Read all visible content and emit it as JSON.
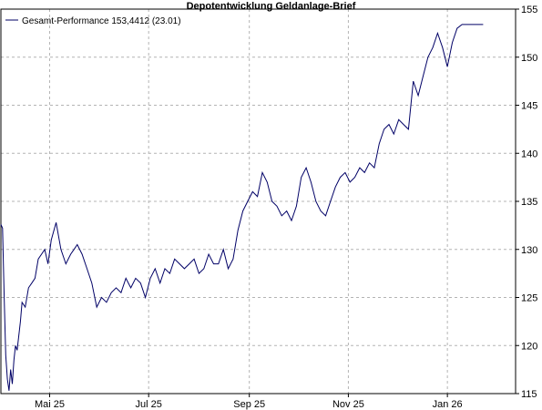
{
  "chart_data": {
    "type": "line",
    "title": "Depotentwicklung Geldanlage-Brief",
    "xlabel": "",
    "ylabel": "",
    "ylim": [
      115,
      155
    ],
    "xlim": [
      "2025-04-01",
      "2026-02-12"
    ],
    "grid": true,
    "legend_position": "top-left",
    "line_color": "#000066",
    "y_ticks": [
      {
        "value": 115,
        "label": "115"
      },
      {
        "value": 120,
        "label": "120"
      },
      {
        "value": 125,
        "label": "125"
      },
      {
        "value": 130,
        "label": "130"
      },
      {
        "value": 135,
        "label": "135"
      },
      {
        "value": 140,
        "label": "140"
      },
      {
        "value": 145,
        "label": "145"
      },
      {
        "value": 150,
        "label": "150"
      },
      {
        "value": 155,
        "label": "155"
      }
    ],
    "x_ticks": [
      {
        "value": "2025-05-01",
        "label": "Mai 25"
      },
      {
        "value": "2025-07-01",
        "label": "Jul 25"
      },
      {
        "value": "2025-09-01",
        "label": "Sep 25"
      },
      {
        "value": "2025-11-01",
        "label": "Nov 25"
      },
      {
        "value": "2026-01-01",
        "label": "Jan 26"
      }
    ],
    "series": [
      {
        "legend_label": "Gesamt-Performance 153,4412 (23.01)",
        "x": [
          "2025-04-01",
          "2025-04-02",
          "2025-04-03",
          "2025-04-04",
          "2025-04-05",
          "2025-04-06",
          "2025-04-07",
          "2025-04-08",
          "2025-04-09",
          "2025-04-10",
          "2025-04-11",
          "2025-04-13",
          "2025-04-14",
          "2025-04-16",
          "2025-04-18",
          "2025-04-20",
          "2025-04-22",
          "2025-04-24",
          "2025-04-26",
          "2025-04-28",
          "2025-04-30",
          "2025-05-02",
          "2025-05-05",
          "2025-05-08",
          "2025-05-11",
          "2025-05-14",
          "2025-05-16",
          "2025-05-18",
          "2025-05-21",
          "2025-05-24",
          "2025-05-27",
          "2025-05-30",
          "2025-06-02",
          "2025-06-05",
          "2025-06-08",
          "2025-06-11",
          "2025-06-14",
          "2025-06-17",
          "2025-06-20",
          "2025-06-23",
          "2025-06-26",
          "2025-06-29",
          "2025-07-02",
          "2025-07-05",
          "2025-07-08",
          "2025-07-11",
          "2025-07-14",
          "2025-07-17",
          "2025-07-20",
          "2025-07-23",
          "2025-07-26",
          "2025-07-29",
          "2025-08-01",
          "2025-08-04",
          "2025-08-07",
          "2025-08-10",
          "2025-08-13",
          "2025-08-16",
          "2025-08-19",
          "2025-08-22",
          "2025-08-25",
          "2025-08-28",
          "2025-08-31",
          "2025-09-03",
          "2025-09-06",
          "2025-09-09",
          "2025-09-12",
          "2025-09-15",
          "2025-09-18",
          "2025-09-21",
          "2025-09-24",
          "2025-09-27",
          "2025-09-30",
          "2025-10-03",
          "2025-10-06",
          "2025-10-09",
          "2025-10-12",
          "2025-10-15",
          "2025-10-18",
          "2025-10-21",
          "2025-10-24",
          "2025-10-27",
          "2025-10-30",
          "2025-11-02",
          "2025-11-05",
          "2025-11-08",
          "2025-11-11",
          "2025-11-14",
          "2025-11-17",
          "2025-11-20",
          "2025-11-23",
          "2025-11-26",
          "2025-11-29",
          "2025-12-02",
          "2025-12-05",
          "2025-12-08",
          "2025-12-11",
          "2025-12-14",
          "2025-12-17",
          "2025-12-20",
          "2025-12-23",
          "2025-12-26",
          "2025-12-29",
          "2026-01-01",
          "2026-01-04",
          "2026-01-07",
          "2026-01-10",
          "2026-01-13",
          "2026-01-16",
          "2026-01-19",
          "2026-01-21",
          "2026-01-23"
        ],
        "values": [
          132.6,
          132.2,
          125.0,
          119.0,
          116.5,
          115.3,
          117.5,
          116.0,
          118.5,
          120.0,
          119.5,
          122.5,
          124.5,
          124.0,
          126.0,
          126.5,
          127.0,
          129.0,
          129.5,
          130.0,
          128.5,
          131.0,
          132.8,
          130.0,
          128.5,
          129.5,
          130.0,
          130.5,
          129.5,
          128.0,
          126.5,
          124.0,
          125.0,
          124.5,
          125.5,
          126.0,
          125.5,
          127.0,
          126.0,
          127.0,
          126.5,
          125.0,
          127.0,
          128.0,
          126.5,
          128.0,
          127.5,
          129.0,
          128.5,
          128.0,
          128.5,
          129.0,
          127.5,
          128.0,
          129.5,
          128.5,
          128.5,
          130.0,
          128.0,
          129.0,
          132.0,
          134.0,
          135.0,
          136.0,
          135.5,
          138.0,
          137.0,
          135.0,
          134.5,
          133.5,
          134.0,
          133.0,
          134.5,
          137.5,
          138.5,
          137.0,
          135.0,
          134.0,
          133.5,
          135.0,
          136.5,
          137.5,
          138.0,
          137.0,
          137.5,
          138.5,
          138.0,
          139.0,
          138.5,
          141.0,
          142.5,
          143.0,
          142.0,
          143.5,
          143.0,
          142.5,
          147.5,
          146.0,
          148.0,
          150.0,
          151.0,
          152.5,
          151.0,
          149.0,
          151.5,
          153.0,
          153.4,
          153.4,
          153.4,
          153.4,
          153.4,
          153.4
        ]
      }
    ]
  }
}
